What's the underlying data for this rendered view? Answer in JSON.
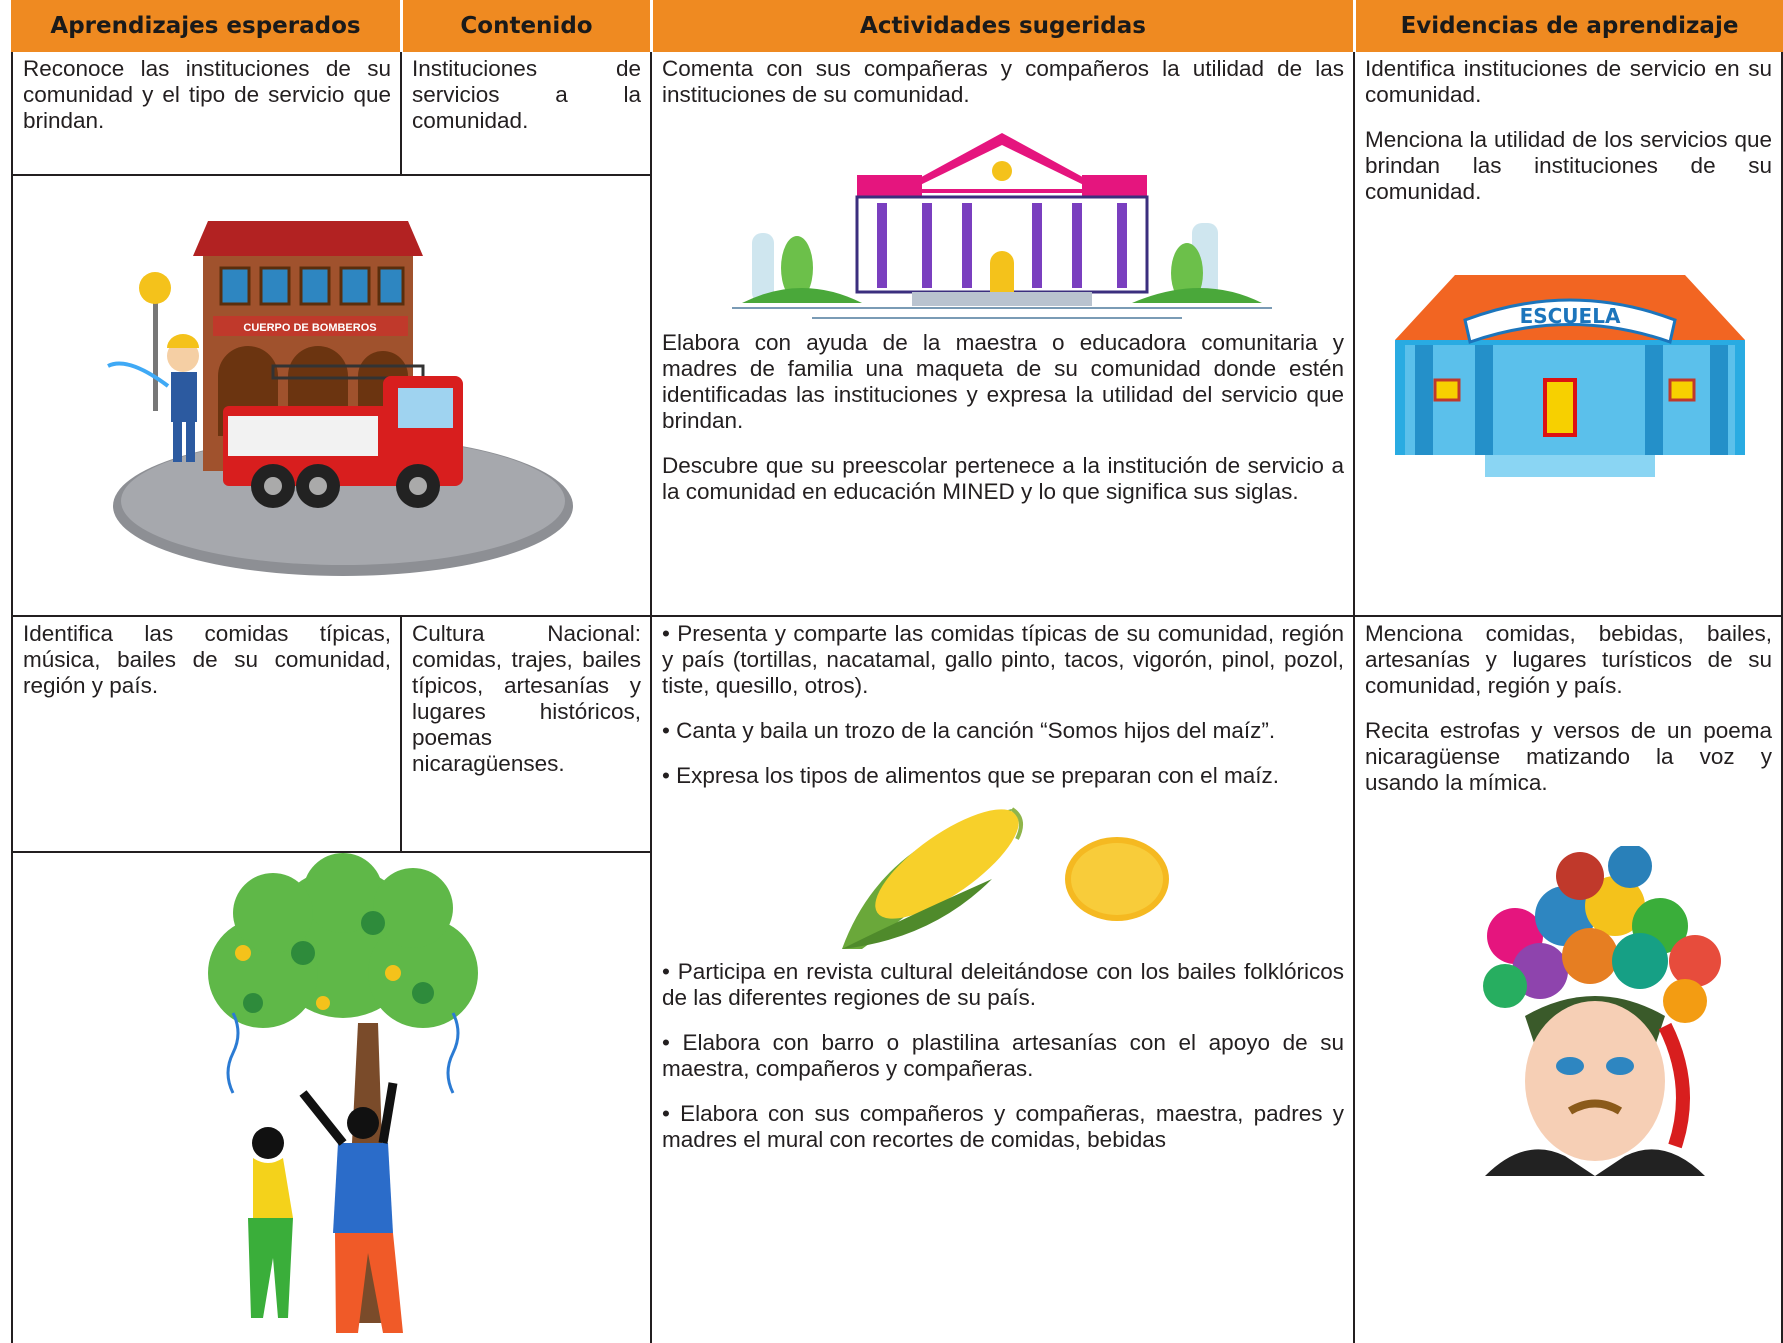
{
  "table": {
    "headers": [
      "Aprendizajes esperados",
      "Contenido",
      "Actividades sugeridas",
      "Evidencias de aprendizaje"
    ],
    "rows": [
      {
        "aprendizajes": "Reconoce las instituciones de su comunidad y el tipo de servicio que brindan.",
        "contenido": "Instituciones de servicios a la comunidad.",
        "actividades": [
          "Comenta con sus compañeras y compañeros la utilidad de las instituciones de su comunidad.",
          "Elabora con ayuda de la maestra o educadora comunitaria y madres de familia una maqueta de su comunidad donde estén identificadas las instituciones y expresa la utilidad del servicio que brindan.",
          "Descubre que su preescolar pertenece a la institución de servicio a la comunidad en educación MINED y lo que significa sus siglas."
        ],
        "evidencias": [
          "Identifica instituciones de servicio en su comunidad.",
          "Menciona la utilidad de los servicios que brindan las instituciones de su comunidad."
        ]
      },
      {
        "aprendizajes": "Identifica las comidas típicas, música, bailes de su comunidad, región y país.",
        "contenido": "Cultura Nacional: comidas, trajes, bailes típicos, artesanías y lugares históricos, poemas nicaragüenses.",
        "actividades": [
          "• Presenta  y comparte las comidas típicas de su comunidad, región y país (tortillas, nacatamal, gallo pinto, tacos, vigorón, pinol, pozol, tiste, quesillo, otros).",
          "• Canta y baila un trozo de la canción “Somos hijos del maíz”.",
          "• Expresa los tipos de alimentos que se preparan con el maíz.",
          "• Participa en revista cultural deleitándose con los bailes folklóricos de las diferentes regiones de su país.",
          "• Elabora con barro o plastilina artesanías con el apoyo de su maestra, compañeros y compañeras.",
          "• Elabora con sus compañeros y compañeras, maestra, padres y madres el mural con recortes de comidas, bebidas"
        ],
        "evidencias": [
          "Menciona comidas, bebidas, bailes, artesanías y lugares turísticos de su comunidad, región y país.",
          "Recita estrofas y versos de un poema nicaragüense matizando la voz y usando la mímica."
        ]
      }
    ]
  },
  "images": {
    "fire_station_sign": "CUERPO DE BOMBEROS",
    "school_sign": "ESCUELA"
  }
}
